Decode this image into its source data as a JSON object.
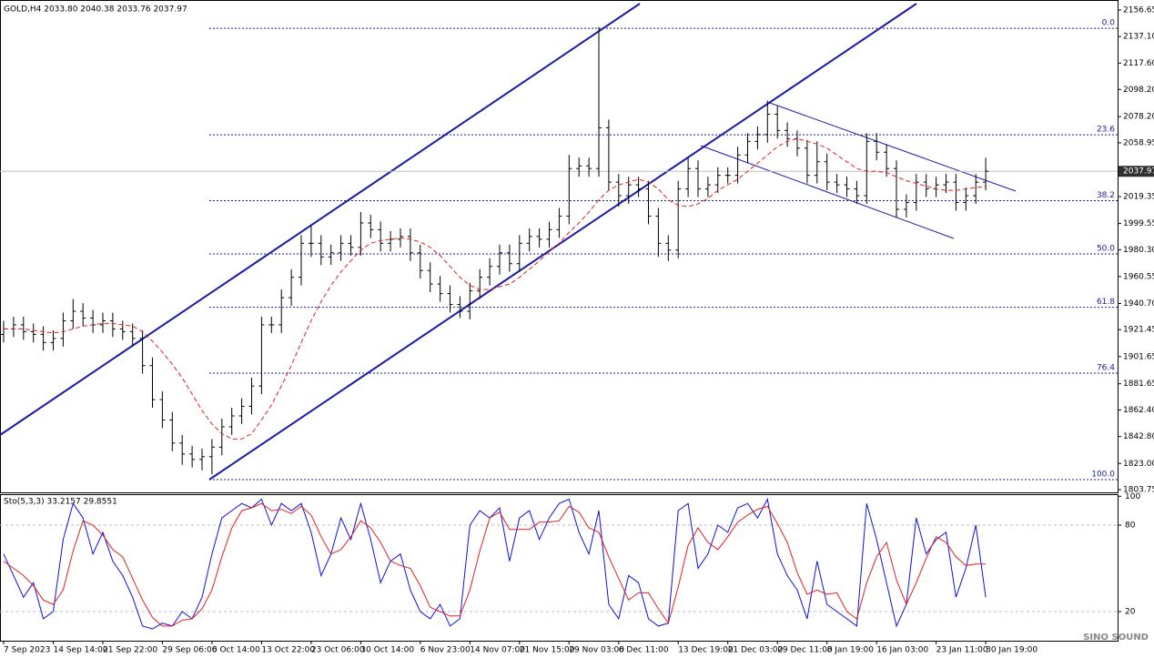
{
  "chart_data": {
    "type": "ohlc",
    "header": "GOLD,H4  2033.80 2040.38 2033.76 2037.97",
    "watermark": "SINO SOUND",
    "ylim": [
      1803.75,
      2156.65
    ],
    "yticks": [
      2156.65,
      {
        "value": 2137.1,
        "label": "2137.10"
      },
      {
        "value": 2117.6,
        "label": "2117.60"
      },
      {
        "value": 2098.2,
        "label": "2098.20"
      },
      {
        "value": 2078.2,
        "label": "2078.20"
      },
      2058.95,
      2019.35,
      1999.55,
      {
        "value": 1980.3,
        "label": "1980.30"
      },
      1960.55,
      {
        "value": 1940.7,
        "label": "1940.70"
      },
      1921.45,
      1901.65,
      1881.65,
      {
        "value": 1862.4,
        "label": "1862.40"
      },
      {
        "value": 1842.8,
        "label": "1842.80"
      },
      {
        "value": 1823,
        "label": "1823.00"
      },
      1803.75
    ],
    "last_price": 2037.97,
    "bar_color": "#000000",
    "xticks": [
      {
        "value": 0,
        "label": "7 Sep 2023"
      },
      {
        "value": 5,
        "label": "14 Sep 14:00"
      },
      {
        "value": 10,
        "label": "21 Sep 22:00"
      },
      {
        "value": 16,
        "label": "29 Sep 06:00"
      },
      {
        "value": 21,
        "label": "6 Oct 14:00"
      },
      {
        "value": 26,
        "label": "13 Oct 22:00"
      },
      {
        "value": 31,
        "label": "23 Oct 06:00"
      },
      {
        "value": 36,
        "label": "30 Oct 14:00"
      },
      {
        "value": 42,
        "label": "6 Nov 23:00"
      },
      {
        "value": 47,
        "label": "14 Nov 07:00"
      },
      {
        "value": 52,
        "label": "21 Nov 15:00"
      },
      {
        "value": 57,
        "label": "29 Nov 03:00"
      },
      {
        "value": 62,
        "label": "6 Dec 11:00"
      },
      {
        "value": 68,
        "label": "13 Dec 19:00"
      },
      {
        "value": 73,
        "label": "21 Dec 03:00"
      },
      {
        "value": 78,
        "label": "29 Dec 11:00"
      },
      {
        "value": 83,
        "label": "8 Jan 19:00"
      },
      {
        "value": 88,
        "label": "16 Jan 03:00"
      },
      {
        "value": 94,
        "label": "23 Jan 11:00"
      },
      {
        "value": 99,
        "label": "30 Jan 19:00"
      }
    ],
    "open": [
      1918,
      1922,
      1925,
      1920,
      1918,
      1912,
      1915,
      1928,
      1935,
      1930,
      1925,
      1928,
      1922,
      1920,
      1915,
      1895,
      1870,
      1855,
      1838,
      1830,
      1826,
      1828,
      1835,
      1850,
      1858,
      1865,
      1880,
      1925,
      1925,
      1945,
      1960,
      1985,
      1985,
      1975,
      1978,
      1985,
      1982,
      2000,
      1995,
      1985,
      1988,
      1990,
      1978,
      1965,
      1955,
      1948,
      1940,
      1935,
      1950,
      1960,
      1968,
      1978,
      1970,
      1985,
      1990,
      1988,
      1995,
      2005,
      2040,
      2042,
      2040,
      2070,
      2030,
      2020,
      2028,
      2025,
      2005,
      1985,
      1980,
      2025,
      2040,
      2025,
      2028,
      2035,
      2035,
      2050,
      2060,
      2065,
      2080,
      2068,
      2062,
      2055,
      2035,
      2045,
      2030,
      2028,
      2025,
      2020,
      2060,
      2052,
      2040,
      2010,
      2015,
      2030,
      2025,
      2028,
      2030,
      2015,
      2020,
      2030
    ],
    "high": [
      1928,
      1931,
      1931,
      1926,
      1924,
      1921,
      1934,
      1944,
      1941,
      1936,
      1934,
      1934,
      1928,
      1926,
      1921,
      1901,
      1876,
      1861,
      1844,
      1836,
      1834,
      1841,
      1856,
      1864,
      1871,
      1886,
      1931,
      1931,
      1951,
      1966,
      1991,
      1998,
      1991,
      1984,
      1991,
      1991,
      2008,
      2006,
      2001,
      1994,
      1996,
      1996,
      1984,
      1971,
      1961,
      1954,
      1946,
      1956,
      1966,
      1974,
      1984,
      1984,
      1991,
      1996,
      1996,
      2001,
      2011,
      2050,
      2048,
      2048,
      2144,
      2076,
      2036,
      2034,
      2034,
      2031,
      2011,
      1991,
      2031,
      2048,
      2046,
      2034,
      2041,
      2041,
      2056,
      2066,
      2071,
      2090,
      2086,
      2074,
      2068,
      2061,
      2060,
      2051,
      2036,
      2034,
      2031,
      2066,
      2066,
      2058,
      2046,
      2021,
      2036,
      2036,
      2034,
      2036,
      2036,
      2026,
      2036,
      2048
    ],
    "low": [
      1912,
      1916,
      1914,
      1912,
      1906,
      1906,
      1909,
      1922,
      1924,
      1919,
      1919,
      1916,
      1914,
      1909,
      1889,
      1864,
      1849,
      1832,
      1822,
      1820,
      1818,
      1815,
      1829,
      1844,
      1852,
      1859,
      1874,
      1919,
      1919,
      1939,
      1954,
      1975,
      1969,
      1969,
      1972,
      1976,
      1976,
      1989,
      1979,
      1979,
      1982,
      1972,
      1959,
      1949,
      1942,
      1934,
      1930,
      1929,
      1944,
      1954,
      1962,
      1964,
      1964,
      1979,
      1982,
      1982,
      1989,
      1999,
      2034,
      2034,
      2034,
      2024,
      2012,
      2014,
      2019,
      1999,
      1975,
      1972,
      1974,
      2019,
      2019,
      2019,
      2022,
      2029,
      2029,
      2044,
      2054,
      2059,
      2062,
      2056,
      2049,
      2029,
      2029,
      2024,
      2022,
      2019,
      2014,
      2014,
      2046,
      2034,
      2004,
      2004,
      2009,
      2019,
      2019,
      2022,
      2009,
      2009,
      2014,
      2024
    ],
    "close": [
      1922,
      1925,
      1920,
      1918,
      1912,
      1915,
      1928,
      1935,
      1930,
      1925,
      1928,
      1922,
      1920,
      1915,
      1895,
      1870,
      1855,
      1838,
      1830,
      1826,
      1828,
      1835,
      1850,
      1858,
      1865,
      1880,
      1925,
      1925,
      1945,
      1960,
      1985,
      1985,
      1975,
      1978,
      1985,
      1982,
      2000,
      1995,
      1985,
      1988,
      1990,
      1978,
      1965,
      1955,
      1948,
      1940,
      1935,
      1950,
      1960,
      1968,
      1978,
      1970,
      1985,
      1990,
      1988,
      1995,
      2005,
      2040,
      2042,
      2040,
      2070,
      2030,
      2020,
      2028,
      2025,
      2005,
      1985,
      1980,
      2025,
      2040,
      2025,
      2028,
      2035,
      2035,
      2050,
      2060,
      2065,
      2080,
      2068,
      2062,
      2055,
      2035,
      2045,
      2030,
      2028,
      2025,
      2020,
      2060,
      2052,
      2040,
      2010,
      2015,
      2030,
      2025,
      2028,
      2030,
      2015,
      2020,
      2030,
      2038
    ],
    "ma": {
      "color": "#e02020",
      "values": [
        1922,
        1922,
        1922,
        1921,
        1920,
        1919,
        1920,
        1922,
        1924,
        1925,
        1926,
        1926,
        1925,
        1924,
        1920,
        1913,
        1905,
        1896,
        1886,
        1874,
        1862,
        1852,
        1845,
        1841,
        1841,
        1845,
        1855,
        1866,
        1880,
        1895,
        1912,
        1928,
        1942,
        1954,
        1964,
        1972,
        1980,
        1985,
        1987,
        1988,
        1989,
        1988,
        1986,
        1982,
        1976,
        1968,
        1960,
        1954,
        1951,
        1951,
        1953,
        1955,
        1960,
        1966,
        1972,
        1979,
        1985,
        1993,
        2000,
        2008,
        2017,
        2024,
        2028,
        2030,
        2032,
        2030,
        2025,
        2017,
        2013,
        2012,
        2014,
        2018,
        2024,
        2028,
        2032,
        2038,
        2044,
        2050,
        2056,
        2060,
        2062,
        2060,
        2058,
        2055,
        2050,
        2045,
        2040,
        2038,
        2038,
        2037,
        2034,
        2031,
        2029,
        2027,
        2025,
        2024,
        2024,
        2025,
        2026,
        2027
      ]
    },
    "fib": {
      "high": 2143.2,
      "low": 1811.1,
      "color": "#1a1a9a",
      "levels": [
        {
          "value": 0,
          "label": "0.0"
        },
        23.6,
        38.2,
        {
          "value": 50,
          "label": "50.0"
        },
        61.8,
        76.4,
        {
          "value": 100,
          "label": "100.0"
        }
      ]
    },
    "stochastic": {
      "title": "Sto(5,3,3) 33.2157 29.8551",
      "ylim": [
        0,
        100
      ],
      "yticks": [
        100,
        80,
        20
      ],
      "levels": [
        80,
        20
      ],
      "series": [
        {
          "color": "#1010e0",
          "values": [
            60,
            45,
            30,
            40,
            15,
            20,
            70,
            95,
            85,
            60,
            75,
            55,
            45,
            30,
            10,
            8,
            12,
            10,
            20,
            15,
            30,
            60,
            85,
            90,
            95,
            92,
            98,
            80,
            95,
            90,
            95,
            75,
            45,
            60,
            85,
            70,
            95,
            70,
            40,
            55,
            60,
            35,
            20,
            15,
            25,
            10,
            15,
            80,
            90,
            85,
            92,
            55,
            85,
            90,
            70,
            85,
            95,
            98,
            75,
            60,
            90,
            25,
            15,
            45,
            40,
            15,
            10,
            12,
            90,
            95,
            50,
            60,
            80,
            75,
            92,
            95,
            85,
            98,
            60,
            45,
            35,
            15,
            55,
            25,
            20,
            15,
            10,
            95,
            70,
            40,
            10,
            25,
            85,
            60,
            70,
            75,
            30,
            50,
            80,
            30
          ]
        },
        {
          "color": "#e02020",
          "values": [
            55,
            50,
            45,
            38,
            28,
            25,
            35,
            62,
            83,
            80,
            73,
            63,
            58,
            43,
            28,
            16,
            10,
            10,
            14,
            15,
            22,
            35,
            58,
            78,
            90,
            92,
            95,
            90,
            91,
            88,
            93,
            87,
            72,
            60,
            63,
            72,
            83,
            78,
            68,
            55,
            52,
            50,
            38,
            23,
            20,
            17,
            17,
            35,
            62,
            85,
            89,
            77,
            77,
            77,
            82,
            82,
            83,
            93,
            89,
            78,
            75,
            58,
            43,
            28,
            33,
            33,
            22,
            12,
            37,
            66,
            78,
            68,
            63,
            72,
            82,
            87,
            91,
            93,
            81,
            68,
            47,
            32,
            35,
            32,
            33,
            20,
            15,
            40,
            58,
            68,
            42,
            25,
            40,
            57,
            72,
            68,
            58,
            52,
            53,
            53
          ]
        }
      ]
    }
  }
}
